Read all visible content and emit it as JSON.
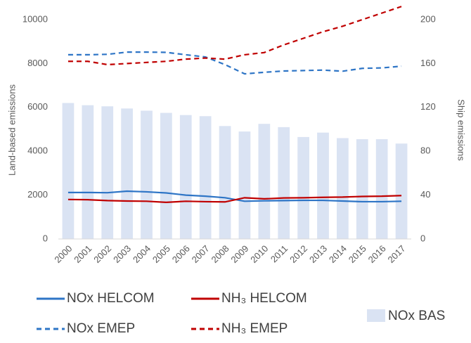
{
  "chart_data": {
    "type": "combo",
    "y_label": "Land-based emissions",
    "y2_label": "Ship emissions",
    "categories": [
      "2000",
      "2001",
      "2002",
      "2003",
      "2004",
      "2005",
      "2006",
      "2007",
      "2008",
      "2009",
      "2010",
      "2011",
      "2012",
      "2013",
      "2014",
      "2015",
      "2016",
      "2017"
    ],
    "ylim": [
      0,
      10400
    ],
    "yticks": [
      0,
      2000,
      4000,
      6000,
      8000,
      10000
    ],
    "y2lim": [
      0,
      208
    ],
    "y2ticks": [
      0,
      40,
      80,
      120,
      160,
      200
    ],
    "series": [
      {
        "name": "NOx HELCOM",
        "kind": "line",
        "dashed": false,
        "color": "#2e75c6",
        "values": [
          2120,
          2120,
          2110,
          2180,
          2150,
          2100,
          2000,
          1950,
          1880,
          1720,
          1740,
          1750,
          1760,
          1760,
          1730,
          1700,
          1700,
          1720
        ]
      },
      {
        "name": "NH₃ HELCOM",
        "kind": "line",
        "dashed": false,
        "color": "#c00000",
        "values": [
          1800,
          1790,
          1750,
          1730,
          1720,
          1670,
          1720,
          1700,
          1690,
          1880,
          1830,
          1870,
          1880,
          1900,
          1910,
          1940,
          1950,
          1980
        ]
      },
      {
        "name": "NOx EMEP",
        "kind": "line",
        "dashed": true,
        "color": "#2e75c6",
        "values": [
          8400,
          8400,
          8420,
          8520,
          8520,
          8510,
          8400,
          8300,
          7950,
          7530,
          7600,
          7660,
          7680,
          7700,
          7650,
          7780,
          7800,
          7880
        ]
      },
      {
        "name": "NH₃ EMEP",
        "kind": "line",
        "dashed": true,
        "color": "#c00000",
        "values": [
          8100,
          8100,
          7950,
          8000,
          8050,
          8100,
          8200,
          8250,
          8200,
          8400,
          8500,
          8850,
          9150,
          9450,
          9700,
          10000,
          10300,
          10600
        ]
      },
      {
        "name": "NOx BAS",
        "kind": "bar",
        "axis": "y2",
        "color": "#dae3f3",
        "values": [
          124,
          122,
          121,
          119,
          117,
          115,
          113,
          112,
          103,
          98,
          105,
          102,
          93,
          97,
          92,
          91,
          91,
          87
        ]
      }
    ]
  }
}
